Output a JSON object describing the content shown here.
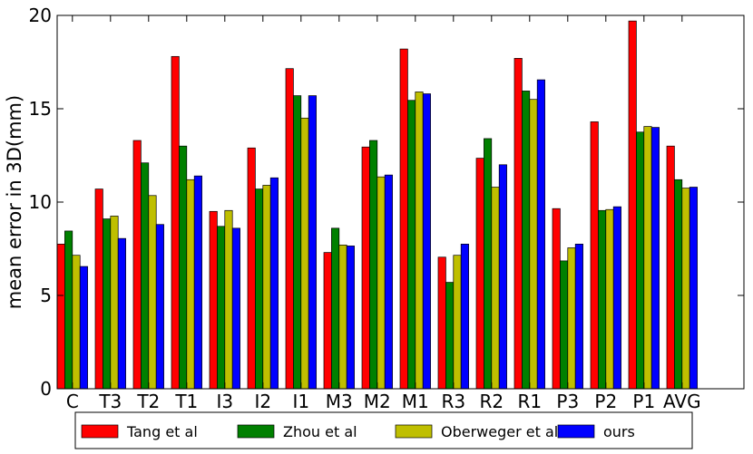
{
  "chart_data": {
    "type": "bar",
    "title": "",
    "xlabel": "",
    "ylabel": "mean error in 3D(mm)",
    "ylim": [
      0,
      20
    ],
    "yticks": [
      0,
      5,
      10,
      15,
      20
    ],
    "grid": false,
    "legend_position": "bottom",
    "categories": [
      "C",
      "T3",
      "T2",
      "T1",
      "I3",
      "I2",
      "I1",
      "M3",
      "M2",
      "M1",
      "R3",
      "R2",
      "R1",
      "P3",
      "P2",
      "P1",
      "AVG"
    ],
    "series": [
      {
        "name": "Tang et al",
        "color": "#ff0000",
        "values": [
          7.75,
          10.7,
          13.3,
          17.8,
          9.5,
          12.9,
          17.15,
          7.3,
          12.95,
          18.2,
          7.05,
          12.35,
          17.7,
          9.65,
          14.3,
          19.7,
          13.0
        ]
      },
      {
        "name": "Zhou et al",
        "color": "#008000",
        "values": [
          8.45,
          9.1,
          12.1,
          13.0,
          8.7,
          10.7,
          15.7,
          8.6,
          13.3,
          15.45,
          5.7,
          13.4,
          15.95,
          6.85,
          9.55,
          13.75,
          11.2
        ]
      },
      {
        "name": "Oberweger et al",
        "color": "#bfbf00",
        "values": [
          7.15,
          9.25,
          10.35,
          11.2,
          9.55,
          10.9,
          14.5,
          7.7,
          11.35,
          15.9,
          7.15,
          10.8,
          15.5,
          7.55,
          9.6,
          14.05,
          10.75
        ]
      },
      {
        "name": "ours",
        "color": "#0000ff",
        "values": [
          6.55,
          8.05,
          8.8,
          11.4,
          8.6,
          11.3,
          15.7,
          7.65,
          11.45,
          15.8,
          7.75,
          12.0,
          16.55,
          7.75,
          9.75,
          14.0,
          10.8
        ]
      }
    ]
  }
}
